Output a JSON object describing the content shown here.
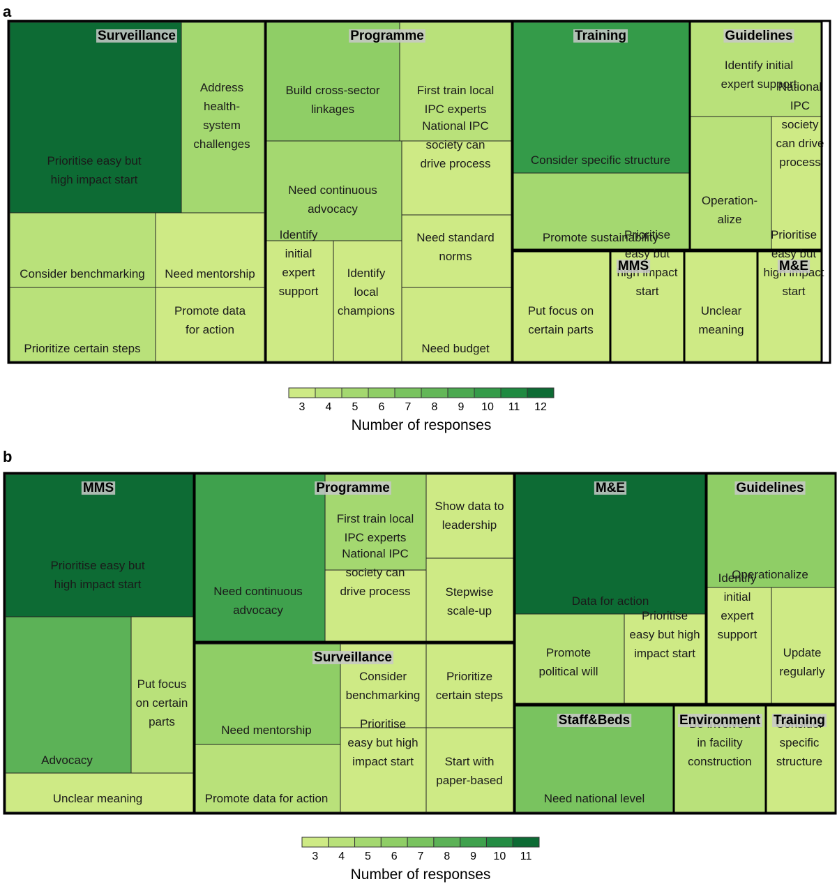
{
  "chart_data": [
    {
      "panel": "a",
      "type": "treemap",
      "legend": {
        "title": "Number of responses",
        "ticks": [
          "3",
          "4",
          "5",
          "6",
          "7",
          "8",
          "9",
          "10",
          "11",
          "12"
        ],
        "colors": [
          "#ceea85",
          "#b9e17a",
          "#a4d870",
          "#8fce66",
          "#79c35f",
          "#63b758",
          "#4ba950",
          "#349b49",
          "#1f8a41",
          "#0d6b34"
        ]
      },
      "groups": [
        {
          "name": "Surveillance",
          "cells": [
            {
              "label": "Prioritise easy but\nhigh impact start",
              "value": 12
            },
            {
              "label": "Address\nhealth-\nsystem\nchallenges",
              "value": 5
            },
            {
              "label": "Consider benchmarking",
              "value": 4
            },
            {
              "label": "Need mentorship",
              "value": 3
            },
            {
              "label": "Prioritize certain steps",
              "value": 4
            },
            {
              "label": "Promote data\nfor action",
              "value": 3
            }
          ]
        },
        {
          "name": "Programme",
          "cells": [
            {
              "label": "Build cross-sector\nlinkages",
              "value": 6
            },
            {
              "label": "First train local\nIPC experts",
              "value": 4
            },
            {
              "label": "Need continuous\nadvocacy",
              "value": 5
            },
            {
              "label": "National IPC\nsociety can\ndrive process",
              "value": 3
            },
            {
              "label": "Identify\ninitial\nexpert\nsupport",
              "value": 3
            },
            {
              "label": "Identify\nlocal\nchampions",
              "value": 3
            },
            {
              "label": "Need standard\nnorms",
              "value": 3
            },
            {
              "label": "Need budget",
              "value": 3
            }
          ]
        },
        {
          "name": "Training",
          "cells": [
            {
              "label": "Consider specific structure",
              "value": 10
            },
            {
              "label": "Promote sustainability",
              "value": 5
            }
          ]
        },
        {
          "name": "Guidelines",
          "cells": [
            {
              "label": "Identify initial\nexpert support",
              "value": 4
            },
            {
              "label": "Operation-\nalize",
              "value": 4
            },
            {
              "label": "National\nIPC\nsociety\ncan drive\nprocess",
              "value": 3
            }
          ]
        },
        {
          "name": "",
          "cells": [
            {
              "label": "Put focus on\ncertain parts",
              "value": 3
            }
          ]
        },
        {
          "name": "MMS",
          "cells": [
            {
              "label": "Prioritise\neasy but\nhigh impact\nstart",
              "value": 3
            }
          ]
        },
        {
          "name": "",
          "cells": [
            {
              "label": "Unclear\nmeaning",
              "value": 3
            }
          ]
        },
        {
          "name": "M&E",
          "cells": [
            {
              "label": "Prioritise\neasy but\nhigh impact\nstart",
              "value": 3
            }
          ]
        }
      ]
    },
    {
      "panel": "b",
      "type": "treemap",
      "legend": {
        "title": "Number of responses",
        "ticks": [
          "3",
          "4",
          "5",
          "6",
          "7",
          "8",
          "9",
          "10",
          "11"
        ],
        "colors": [
          "#ceea85",
          "#b9e17a",
          "#a4d870",
          "#8fce66",
          "#79c35f",
          "#5cb257",
          "#3fa14d",
          "#248c43",
          "#0d6b34"
        ]
      },
      "groups": [
        {
          "name": "MMS",
          "cells": [
            {
              "label": "Prioritise easy but\nhigh impact start",
              "value": 11
            },
            {
              "label": "Advocacy",
              "value": 8
            },
            {
              "label": "Put focus\non certain\nparts",
              "value": 4
            },
            {
              "label": "Unclear meaning",
              "value": 3
            }
          ]
        },
        {
          "name": "Programme",
          "cells": [
            {
              "label": "Need continuous\nadvocacy",
              "value": 9
            },
            {
              "label": "First train local\nIPC experts",
              "value": 5
            },
            {
              "label": "National IPC\nsociety can\ndrive process",
              "value": 3
            },
            {
              "label": "Show data to\nleadership",
              "value": 3
            },
            {
              "label": "Stepwise\nscale-up",
              "value": 3
            }
          ]
        },
        {
          "name": "Surveillance",
          "cells": [
            {
              "label": "Need mentorship",
              "value": 6
            },
            {
              "label": "Promote data for action",
              "value": 4
            },
            {
              "label": "Consider\nbenchmarking",
              "value": 3
            },
            {
              "label": "Prioritize\ncertain steps",
              "value": 3
            },
            {
              "label": "Prioritise\neasy but high\nimpact start",
              "value": 3
            },
            {
              "label": "Start with\npaper-based",
              "value": 3
            }
          ]
        },
        {
          "name": "M&E",
          "cells": [
            {
              "label": "Data for action",
              "value": 11
            },
            {
              "label": "Promote\npolitical will",
              "value": 4
            },
            {
              "label": "Prioritise\neasy but high\nimpact start",
              "value": 3
            }
          ]
        },
        {
          "name": "Guidelines",
          "cells": [
            {
              "label": "Operationalize",
              "value": 6
            },
            {
              "label": "Identify\ninitial\nexpert\nsupport",
              "value": 3
            },
            {
              "label": "Update\nregularly",
              "value": 3
            }
          ]
        },
        {
          "name": "Staff&Beds",
          "cells": [
            {
              "label": "Need national level",
              "value": 7
            }
          ]
        },
        {
          "name": "Environment",
          "cells": [
            {
              "label": "Be involved\nin facility\nconstruction",
              "value": 4
            }
          ]
        },
        {
          "name": "Training",
          "cells": [
            {
              "label": "Consider\nspecific\nstructure",
              "value": 3
            }
          ]
        }
      ]
    }
  ]
}
